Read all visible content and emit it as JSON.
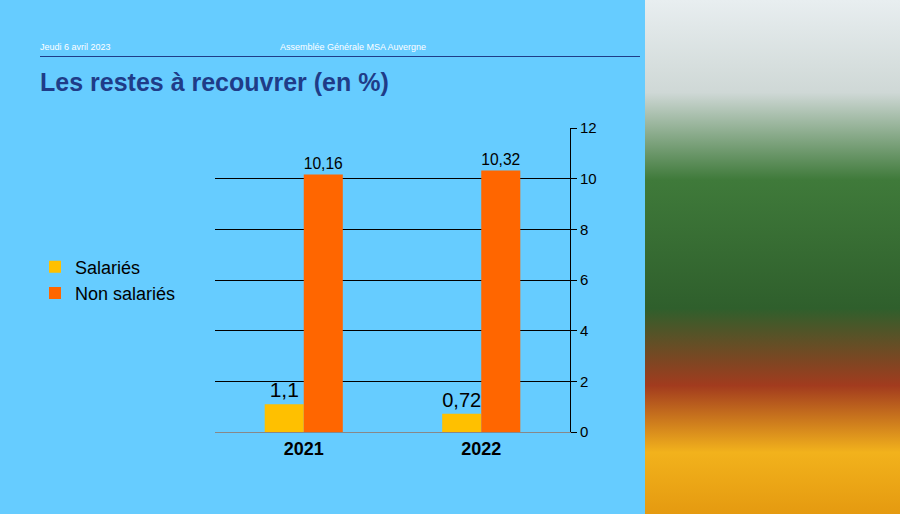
{
  "header": {
    "date": "Jeudi 6 avril 2023",
    "event": "Assemblée  Générale  MSA Auvergne"
  },
  "chart_data": {
    "type": "bar",
    "title": "Les restes à recouvrer (en %)",
    "categories": [
      "2021",
      "2022"
    ],
    "series": [
      {
        "name": "Salariés",
        "color": "#FFC000",
        "values": [
          1.1,
          0.72
        ],
        "value_labels": [
          "1,1",
          "0,72"
        ]
      },
      {
        "name": "Non salariés",
        "color": "#FF6600",
        "values": [
          10.16,
          10.32
        ],
        "value_labels": [
          "10,16",
          "10,32"
        ]
      }
    ],
    "ylim": [
      0,
      12
    ],
    "yticks": [
      0,
      2,
      4,
      6,
      8,
      10,
      12
    ],
    "grid": true,
    "legend": "left",
    "data_labels": true
  }
}
